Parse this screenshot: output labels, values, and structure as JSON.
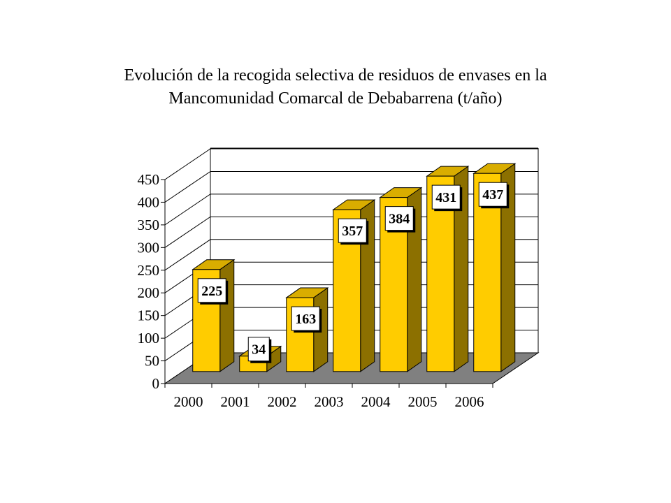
{
  "title": {
    "line1": "Evolución de la recogida selectiva de residuos de envases en la",
    "line2": "Mancomunidad Comarcal de Debabarrena (t/año)"
  },
  "colors": {
    "bar_front": "#FFCC00",
    "bar_side": "#8C7000",
    "bar_top": "#D9AD00",
    "floor": "#808080",
    "grid": "#000000"
  },
  "chart_data": {
    "type": "bar",
    "title": "Evolución de la recogida selectiva de residuos de envases en la Mancomunidad Comarcal de Debabarrena (t/año)",
    "categories": [
      "2000",
      "2001",
      "2002",
      "2003",
      "2004",
      "2005",
      "2006"
    ],
    "values": [
      225,
      34,
      163,
      357,
      384,
      431,
      437
    ],
    "data_labels": [
      "225",
      "34",
      "163",
      "357",
      "384",
      "431",
      "437"
    ],
    "ylim": [
      0,
      450
    ],
    "yticks": [
      "0",
      "50",
      "100",
      "150",
      "200",
      "250",
      "300",
      "350",
      "400",
      "450"
    ],
    "xlabel": "",
    "ylabel": "",
    "grid": true,
    "style": "3d"
  }
}
